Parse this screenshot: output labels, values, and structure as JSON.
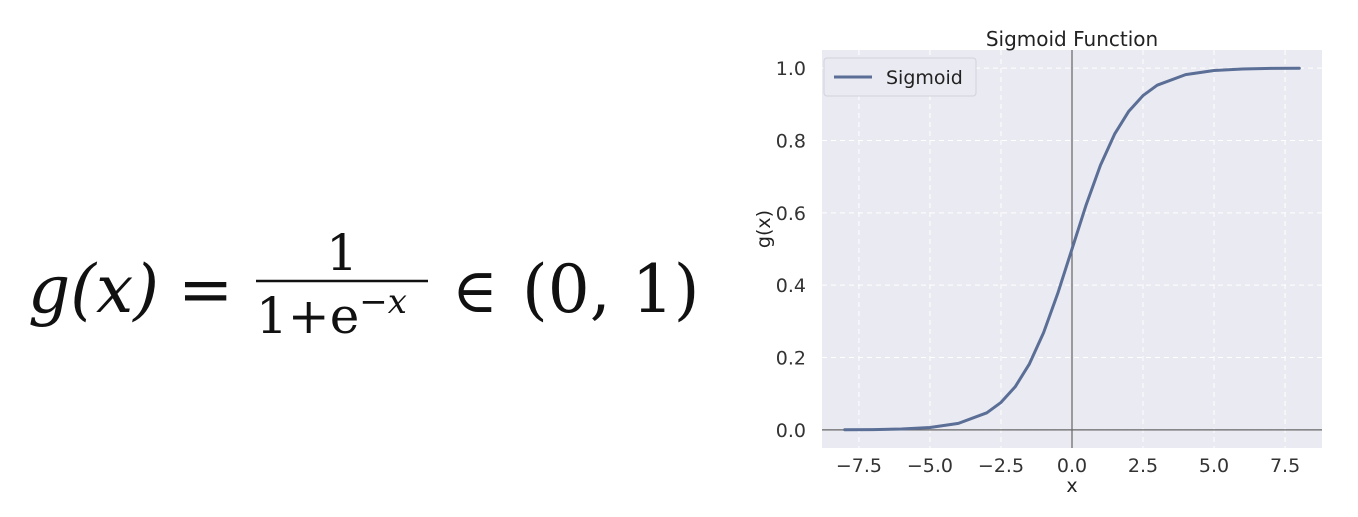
{
  "formula": {
    "lhs": "g(x)",
    "equals": "=",
    "numerator": "1",
    "denominator_base": "1+e",
    "denominator_exponent": "−x",
    "member_of": "∈",
    "interval": "(0, 1)"
  },
  "chart_data": {
    "type": "line",
    "title": "Sigmoid Function",
    "xlabel": "x",
    "ylabel": "g(x)",
    "xlim": [
      -8.8,
      8.8
    ],
    "ylim": [
      -0.05,
      1.05
    ],
    "xticks": [
      -7.5,
      -5.0,
      -2.5,
      0.0,
      2.5,
      5.0,
      7.5
    ],
    "xtick_labels": [
      "−7.5",
      "−5.0",
      "−2.5",
      "0.0",
      "2.5",
      "5.0",
      "7.5"
    ],
    "yticks": [
      0.0,
      0.2,
      0.4,
      0.6,
      0.8,
      1.0
    ],
    "ytick_labels": [
      "0.0",
      "0.2",
      "0.4",
      "0.6",
      "0.8",
      "1.0"
    ],
    "grid": true,
    "legend_position": "top-left",
    "reference_lines": {
      "x": 0,
      "y": 0
    },
    "series": [
      {
        "name": "Sigmoid",
        "color": "#5a6e96",
        "x": [
          -8,
          -7,
          -6,
          -5,
          -4,
          -3,
          -2.5,
          -2,
          -1.5,
          -1,
          -0.5,
          0,
          0.5,
          1,
          1.5,
          2,
          2.5,
          3,
          4,
          5,
          6,
          7,
          8
        ],
        "y": [
          0.0003,
          0.0009,
          0.0025,
          0.0067,
          0.018,
          0.0474,
          0.0759,
          0.1192,
          0.1824,
          0.2689,
          0.3775,
          0.5,
          0.6225,
          0.7311,
          0.8176,
          0.8808,
          0.9241,
          0.9526,
          0.982,
          0.9933,
          0.9975,
          0.9991,
          0.9997
        ]
      }
    ],
    "colors": {
      "plot_background": "#eaeaf2",
      "grid": "#ffffff",
      "reference_line": "#666666"
    }
  }
}
